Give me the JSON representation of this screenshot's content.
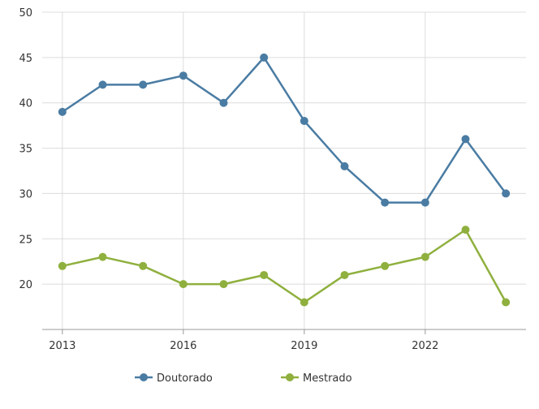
{
  "colors": {
    "doutorado": "#4a7ca3",
    "mestrado": "#8fb03e",
    "grid": "#dcdcdc",
    "axis": "#999999",
    "text": "#333333"
  },
  "chart_data": {
    "type": "line",
    "title": "",
    "xlabel": "",
    "ylabel": "",
    "x": [
      2013,
      2014,
      2015,
      2016,
      2017,
      2018,
      2019,
      2020,
      2021,
      2022,
      2023,
      2024
    ],
    "xticks": [
      2013,
      2016,
      2019,
      2022
    ],
    "xtick_labels": [
      "2013",
      "2016",
      "2019",
      "2022"
    ],
    "xlim": [
      2012.5,
      2024.5
    ],
    "ylim": [
      15,
      50
    ],
    "yticks": [
      20,
      25,
      30,
      35,
      40,
      45,
      50
    ],
    "ytick_labels": [
      "20",
      "25",
      "30",
      "35",
      "40",
      "45",
      "50"
    ],
    "grid": true,
    "legend_position": "bottom-center",
    "series": [
      {
        "name": "Doutorado",
        "color_key": "doutorado",
        "values": [
          39,
          42,
          42,
          43,
          40,
          45,
          38,
          33,
          29,
          29,
          36,
          30
        ]
      },
      {
        "name": "Mestrado",
        "color_key": "mestrado",
        "values": [
          22,
          23,
          22,
          20,
          20,
          21,
          18,
          21,
          22,
          23,
          26,
          18
        ]
      }
    ]
  }
}
